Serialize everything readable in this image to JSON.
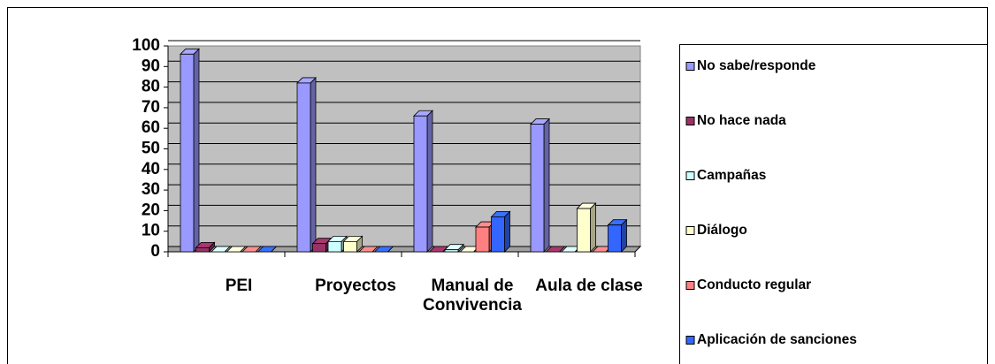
{
  "chart_data": {
    "type": "bar",
    "categories": [
      "PEI",
      "Proyectos",
      "Manual de Convivencia",
      "Aula de clase"
    ],
    "series": [
      {
        "name": "No sabe/responde",
        "color": "#9999ff",
        "values": [
          96,
          82,
          66,
          62
        ]
      },
      {
        "name": "No hace nada",
        "color": "#993366",
        "values": [
          2,
          4,
          0,
          0
        ]
      },
      {
        "name": "Campañas",
        "color": "#ccffff",
        "values": [
          0,
          5,
          1,
          0
        ]
      },
      {
        "name": "Diálogo",
        "color": "#ffffcc",
        "values": [
          0,
          5,
          0,
          21
        ]
      },
      {
        "name": "Conducto regular",
        "color": "#ff8080",
        "values": [
          0,
          0,
          12,
          0
        ]
      },
      {
        "name": "Aplicación de sanciones",
        "color": "#3366ff",
        "values": [
          0,
          0,
          17,
          13
        ]
      }
    ],
    "ylim": [
      0,
      100
    ],
    "yticks": [
      0,
      10,
      20,
      30,
      40,
      50,
      60,
      70,
      80,
      90,
      100
    ],
    "grid": true,
    "legend": "right"
  }
}
